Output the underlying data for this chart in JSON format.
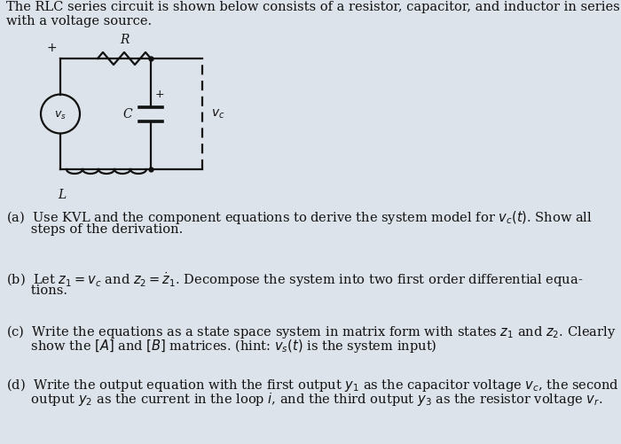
{
  "background_color": "#dde3ea",
  "text_color": "#111111",
  "font_size_main": 10.5,
  "font_size_circuit": 10,
  "title_line1": "The RLC series circuit is shown below consists of a resistor, capacitor, and inductor in series",
  "title_line2": "with a voltage source.",
  "part_a_line1": "(a)  Use KVL and the component equations to derive the system model for $v_c(t)$. Show all",
  "part_a_line2": "      steps of the derivation.",
  "part_b_line1": "(b)  Let $z_1 = v_c$ and $z_2 = \\dot{z}_1$. Decompose the system into two first order differential equa-",
  "part_b_line2": "      tions.",
  "part_c_line1": "(c)  Write the equations as a state space system in matrix form with states $z_1$ and $z_2$. Clearly",
  "part_c_line2": "      show the $[A]$ and $[B]$ matrices. (hint: $v_s(t)$ is the system input)",
  "part_d_line1": "(d)  Write the output equation with the first output $y_1$ as the capacitor voltage $v_c$, the second",
  "part_d_line2": "      output $y_2$ as the current in the loop $i$, and the third output $y_3$ as the resistor voltage $v_r$."
}
